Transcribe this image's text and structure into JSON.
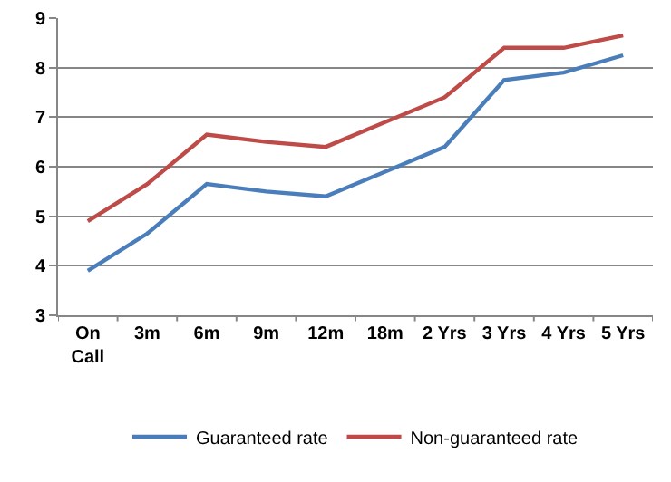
{
  "chart_data": {
    "type": "line",
    "categories": [
      "On\nCall",
      "3m",
      "6m",
      "9m",
      "12m",
      "18m",
      "2 Yrs",
      "3 Yrs",
      "4 Yrs",
      "5 Yrs"
    ],
    "series": [
      {
        "name": "Guaranteed rate",
        "color": "#4a7ebb",
        "values": [
          3.9,
          4.65,
          5.65,
          5.5,
          5.4,
          5.9,
          6.4,
          7.75,
          7.9,
          8.25
        ]
      },
      {
        "name": "Non-guaranteed rate",
        "color": "#be4b48",
        "values": [
          4.9,
          5.65,
          6.65,
          6.5,
          6.4,
          6.9,
          7.4,
          8.4,
          8.4,
          8.65
        ]
      }
    ],
    "ylim": [
      3,
      9
    ],
    "yticks": [
      3,
      4,
      5,
      6,
      7,
      8,
      9
    ],
    "grid": "y",
    "legend": "bottom",
    "marker": "none",
    "line_style": "solid"
  }
}
